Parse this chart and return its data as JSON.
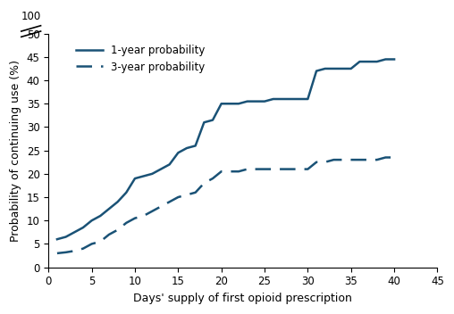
{
  "title": "",
  "xlabel": "Days' supply of first opioid prescription",
  "ylabel": "Probability of continuing use (%)",
  "line_color": "#1a5276",
  "one_year_x": [
    1,
    2,
    3,
    4,
    5,
    6,
    7,
    8,
    9,
    10,
    11,
    12,
    13,
    14,
    15,
    16,
    17,
    18,
    19,
    20,
    21,
    22,
    23,
    24,
    25,
    26,
    27,
    28,
    29,
    30,
    31,
    32,
    33,
    34,
    35,
    36,
    37,
    38,
    39,
    40
  ],
  "one_year_y": [
    6,
    6.5,
    7.5,
    8.5,
    10,
    11,
    12.5,
    14,
    16,
    19,
    19.5,
    20,
    21,
    22,
    24.5,
    25.5,
    26,
    31,
    31.5,
    35,
    35,
    35,
    35.5,
    35.5,
    35.5,
    36,
    36,
    36,
    36,
    36,
    42,
    42.5,
    42.5,
    42.5,
    42.5,
    44,
    44,
    44,
    44.5,
    44.5
  ],
  "three_year_x": [
    1,
    2,
    3,
    4,
    5,
    6,
    7,
    8,
    9,
    10,
    11,
    12,
    13,
    14,
    15,
    16,
    17,
    18,
    19,
    20,
    21,
    22,
    23,
    24,
    25,
    26,
    27,
    28,
    29,
    30,
    31,
    32,
    33,
    34,
    35,
    36,
    37,
    38,
    39,
    40
  ],
  "three_year_y": [
    3,
    3.2,
    3.5,
    4,
    5,
    5.5,
    7,
    8,
    9.5,
    10.5,
    11,
    12,
    13,
    14,
    15,
    15.5,
    16,
    18,
    19,
    20.5,
    20.5,
    20.5,
    21,
    21,
    21,
    21,
    21,
    21,
    21,
    21,
    22.5,
    22.5,
    23,
    23,
    23,
    23,
    23,
    23,
    23.5,
    23.5
  ],
  "xlim": [
    0,
    45
  ],
  "ylim": [
    0,
    50
  ],
  "yticks": [
    0,
    5,
    10,
    15,
    20,
    25,
    30,
    35,
    40,
    45,
    50
  ],
  "xticks": [
    0,
    5,
    10,
    15,
    20,
    25,
    30,
    35,
    40,
    45
  ],
  "legend_labels": [
    "1-year probability",
    "3-year probability"
  ],
  "legend_loc": "upper left"
}
